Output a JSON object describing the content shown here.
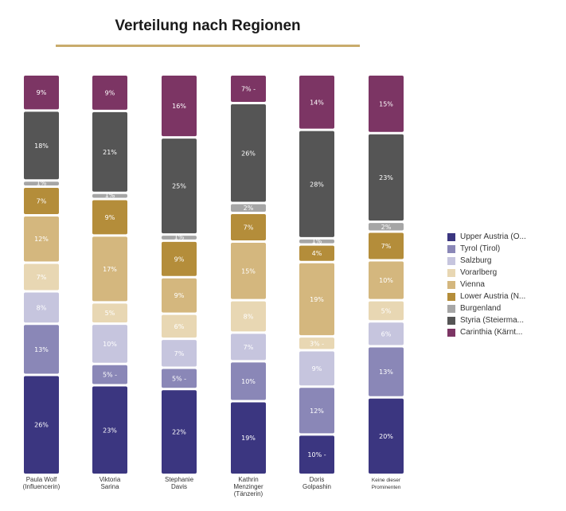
{
  "chart_data": {
    "type": "bar",
    "stacked": true,
    "normalized": true,
    "title": "Verteilung nach Regionen",
    "xlabel": "",
    "ylabel": "",
    "ylim": [
      0,
      100
    ],
    "legend_position": "right",
    "categories": [
      "Paula Wolf (Influencerin)",
      "Viktoria Sarina",
      "Stephanie Davis",
      "Kathrin Menzinger (Tänzerin)",
      "Doris Golpashin",
      "Keine dieser Prominenten"
    ],
    "category_lines": [
      [
        "Paula Wolf",
        "(Influencerin)"
      ],
      [
        "Viktoria",
        "Sarina"
      ],
      [
        "Stephanie",
        "Davis"
      ],
      [
        "Kathrin",
        "Menzinger",
        "(Tänzerin)"
      ],
      [
        "Doris",
        "Golpashin"
      ],
      [
        "Keine dieser",
        "Prominenten"
      ]
    ],
    "series": [
      {
        "name": "Upper Austria (O...",
        "color": "#3b3680",
        "values": [
          26,
          23,
          22,
          19,
          10,
          20
        ],
        "labels": [
          "26%",
          "23%",
          "22%",
          "19%",
          "10% -",
          "20%"
        ]
      },
      {
        "name": "Tyrol (Tirol)",
        "color": "#8a87b7",
        "values": [
          13,
          5,
          5,
          10,
          12,
          13
        ],
        "labels": [
          "13%",
          "5% -",
          "5% -",
          "10%",
          "12%",
          "13%"
        ]
      },
      {
        "name": "Salzburg",
        "color": "#c6c5de",
        "values": [
          8,
          10,
          7,
          7,
          9,
          6
        ],
        "labels": [
          "8%",
          "10%",
          "7%",
          "7%",
          "9%",
          "6%"
        ]
      },
      {
        "name": "Vorarlberg",
        "color": "#e8d7b3",
        "values": [
          7,
          5,
          6,
          8,
          3,
          5
        ],
        "labels": [
          "7%",
          "5%",
          "6%",
          "8%",
          "3% -",
          "5%"
        ]
      },
      {
        "name": "Vienna",
        "color": "#d4b77e",
        "values": [
          12,
          17,
          9,
          15,
          19,
          10
        ],
        "labels": [
          "12%",
          "17%",
          "9%",
          "15%",
          "19%",
          "10%"
        ]
      },
      {
        "name": "Lower Austria (N...",
        "color": "#b48d3a",
        "values": [
          7,
          9,
          9,
          7,
          4,
          7
        ],
        "labels": [
          "7%",
          "9%",
          "9%",
          "7%",
          "4%",
          "7%"
        ]
      },
      {
        "name": "Burgenland",
        "color": "#a6a6a6",
        "values": [
          1,
          1,
          1,
          2,
          1,
          2
        ],
        "labels": [
          "1%",
          "1%",
          "1%",
          "2%",
          "1%",
          "2%"
        ]
      },
      {
        "name": "Styria (Steierma...",
        "color": "#555555",
        "values": [
          18,
          21,
          25,
          26,
          28,
          23
        ],
        "labels": [
          "18%",
          "21%",
          "25%",
          "26%",
          "28%",
          "23%"
        ]
      },
      {
        "name": "Carinthia (Kärnt...",
        "color": "#7c3564",
        "values": [
          9,
          9,
          16,
          7,
          14,
          15
        ],
        "labels": [
          "9%",
          "9%",
          "16%",
          "7% -",
          "14%",
          "15%"
        ]
      }
    ]
  }
}
